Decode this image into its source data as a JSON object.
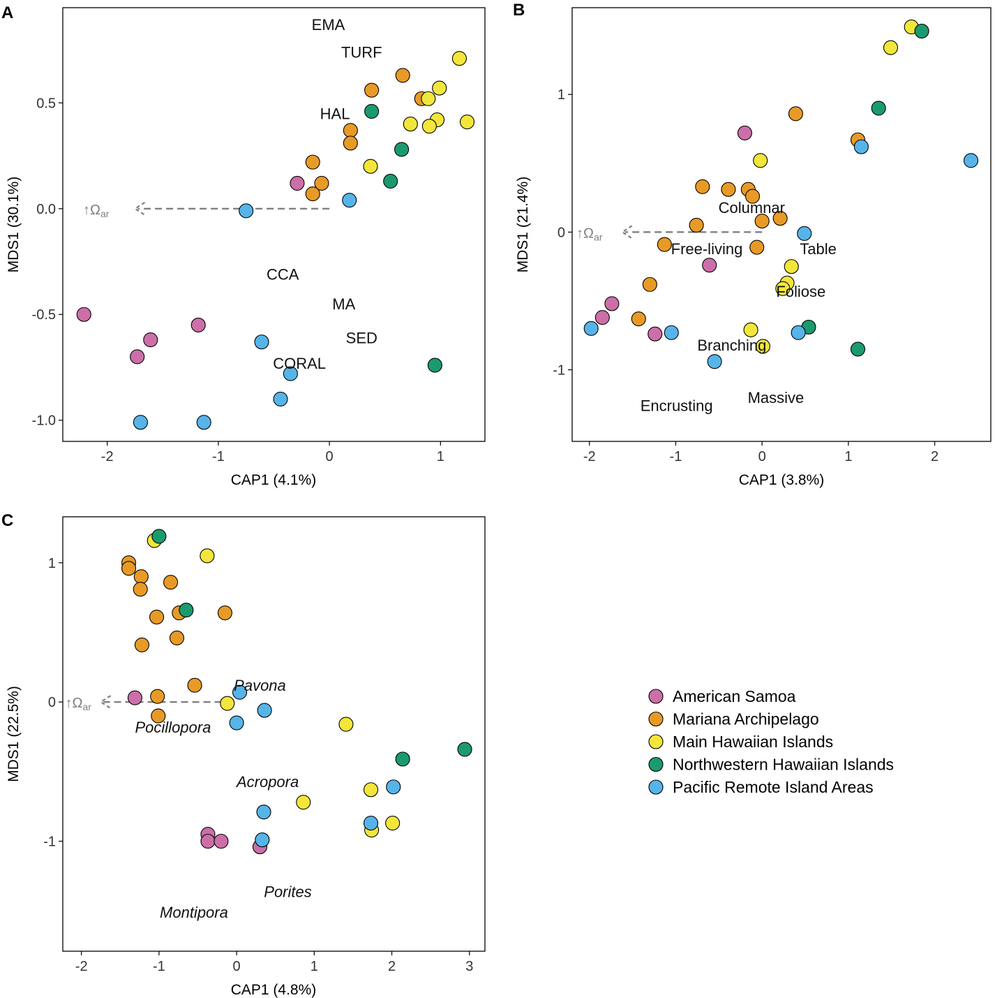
{
  "colors": {
    "american_samoa": "#cc6fa8",
    "mariana": "#e89a26",
    "main_hawaiian": "#f2e63a",
    "nw_hawaiian": "#1b9a6e",
    "pria": "#56b4e9",
    "axis": "#000000",
    "arrow": "#808080"
  },
  "legend": {
    "entries": [
      {
        "key": "american_samoa",
        "label": "American Samoa"
      },
      {
        "key": "mariana",
        "label": "Mariana Archipelago"
      },
      {
        "key": "main_hawaiian",
        "label": "Main Hawaiian Islands"
      },
      {
        "key": "nw_hawaiian",
        "label": "Northwestern Hawaiian Islands"
      },
      {
        "key": "pria",
        "label": "Pacific Remote Island Areas"
      }
    ]
  },
  "chart_data": [
    {
      "panel": "A",
      "type": "scatter",
      "xlabel": "CAP1 (4.1%)",
      "ylabel": "MDS1 (30.1%)",
      "xlim": [
        -2.4,
        1.4
      ],
      "ylim": [
        -1.1,
        0.95
      ],
      "xticks": [
        -2,
        -1,
        0,
        1
      ],
      "xtick_labels": [
        "-2",
        "-1",
        "0",
        "1"
      ],
      "yticks": [
        0.5,
        0.0,
        -0.5,
        -1.0
      ],
      "ytick_labels": [
        "0.5",
        "0.0",
        "-0.5",
        "-1.0"
      ],
      "arrow": {
        "y": 0,
        "from_x": 0,
        "to_x": -1.75,
        "label_x": -2.1,
        "label": "↑Ω",
        "label_sub": "ar"
      },
      "labels": [
        {
          "text": "EMA",
          "x": -0.01,
          "y": 0.87,
          "italic": false
        },
        {
          "text": "TURF",
          "x": 0.29,
          "y": 0.74,
          "italic": false
        },
        {
          "text": "HAL",
          "x": 0.05,
          "y": 0.45,
          "italic": false
        },
        {
          "text": "CCA",
          "x": -0.42,
          "y": -0.31,
          "italic": false
        },
        {
          "text": "MA",
          "x": 0.13,
          "y": -0.45,
          "italic": false
        },
        {
          "text": "SED",
          "x": 0.29,
          "y": -0.61,
          "italic": false
        },
        {
          "text": "CORAL",
          "x": -0.27,
          "y": -0.73,
          "italic": false
        }
      ],
      "series": [
        {
          "key": "american_samoa",
          "points": [
            [
              -2.21,
              -0.5
            ],
            [
              -1.61,
              -0.62
            ],
            [
              -1.73,
              -0.7
            ],
            [
              -1.18,
              -0.55
            ],
            [
              -0.29,
              0.12
            ]
          ]
        },
        {
          "key": "mariana",
          "points": [
            [
              0.66,
              0.63
            ],
            [
              0.38,
              0.56
            ],
            [
              0.83,
              0.52
            ],
            [
              0.19,
              0.37
            ],
            [
              0.19,
              0.31
            ],
            [
              -0.15,
              0.22
            ],
            [
              -0.07,
              0.12
            ],
            [
              -0.15,
              0.07
            ]
          ]
        },
        {
          "key": "main_hawaiian",
          "points": [
            [
              1.17,
              0.71
            ],
            [
              0.99,
              0.57
            ],
            [
              0.89,
              0.52
            ],
            [
              0.97,
              0.42
            ],
            [
              1.24,
              0.41
            ],
            [
              0.73,
              0.4
            ],
            [
              0.9,
              0.39
            ],
            [
              0.37,
              0.2
            ]
          ]
        },
        {
          "key": "nw_hawaiian",
          "points": [
            [
              0.38,
              0.46
            ],
            [
              0.65,
              0.28
            ],
            [
              0.55,
              0.13
            ],
            [
              0.95,
              -0.74
            ]
          ]
        },
        {
          "key": "pria",
          "points": [
            [
              -0.75,
              -0.01
            ],
            [
              0.18,
              0.04
            ],
            [
              -0.61,
              -0.63
            ],
            [
              -0.35,
              -0.78
            ],
            [
              -0.44,
              -0.9
            ],
            [
              -1.7,
              -1.01
            ],
            [
              -1.13,
              -1.01
            ]
          ]
        }
      ]
    },
    {
      "panel": "B",
      "type": "scatter",
      "xlabel": "CAP1 (3.8%)",
      "ylabel": "MDS1 (21.4%)",
      "xlim": [
        -2.2,
        2.65
      ],
      "ylim": [
        -1.52,
        1.63
      ],
      "xticks": [
        -2,
        -1,
        0,
        1,
        2
      ],
      "xtick_labels": [
        "-2",
        "-1",
        "0",
        "1",
        "2"
      ],
      "yticks": [
        1,
        0,
        -1
      ],
      "ytick_labels": [
        "1",
        "0",
        "-1"
      ],
      "arrow": {
        "y": 0,
        "from_x": 0,
        "to_x": -1.62,
        "label_x": -2.0,
        "label": "↑Ω",
        "label_sub": "ar"
      },
      "labels": [
        {
          "text": "Columnar",
          "x": -0.12,
          "y": 0.18,
          "italic": false
        },
        {
          "text": "Free-living",
          "x": -0.64,
          "y": -0.12,
          "italic": false
        },
        {
          "text": "Table",
          "x": 0.65,
          "y": -0.12,
          "italic": false
        },
        {
          "text": "Foliose",
          "x": 0.45,
          "y": -0.43,
          "italic": false
        },
        {
          "text": "Branching",
          "x": -0.35,
          "y": -0.82,
          "italic": false
        },
        {
          "text": "Encrusting",
          "x": -0.99,
          "y": -1.26,
          "italic": false
        },
        {
          "text": "Massive",
          "x": 0.16,
          "y": -1.2,
          "italic": false
        }
      ],
      "series": [
        {
          "key": "american_samoa",
          "points": [
            [
              -0.2,
              0.72
            ],
            [
              -0.61,
              -0.24
            ],
            [
              -1.74,
              -0.52
            ],
            [
              -1.85,
              -0.62
            ],
            [
              -1.24,
              -0.74
            ]
          ]
        },
        {
          "key": "mariana",
          "points": [
            [
              0.39,
              0.86
            ],
            [
              1.11,
              0.67
            ],
            [
              -0.69,
              0.33
            ],
            [
              -0.39,
              0.31
            ],
            [
              -0.16,
              0.31
            ],
            [
              -0.11,
              0.26
            ],
            [
              -0.76,
              0.05
            ],
            [
              0.0,
              0.08
            ],
            [
              0.21,
              0.1
            ],
            [
              -1.13,
              -0.09
            ],
            [
              -0.06,
              -0.11
            ],
            [
              -1.3,
              -0.38
            ],
            [
              -1.43,
              -0.63
            ]
          ]
        },
        {
          "key": "main_hawaiian",
          "points": [
            [
              1.73,
              1.49
            ],
            [
              1.49,
              1.34
            ],
            [
              -0.02,
              0.52
            ],
            [
              0.34,
              -0.25
            ],
            [
              0.29,
              -0.37
            ],
            [
              0.24,
              -0.41
            ],
            [
              -0.13,
              -0.71
            ],
            [
              0.01,
              -0.83
            ]
          ]
        },
        {
          "key": "nw_hawaiian",
          "points": [
            [
              1.85,
              1.46
            ],
            [
              1.35,
              0.9
            ],
            [
              0.54,
              -0.69
            ],
            [
              1.11,
              -0.85
            ]
          ]
        },
        {
          "key": "pria",
          "points": [
            [
              2.42,
              0.52
            ],
            [
              1.15,
              0.62
            ],
            [
              0.49,
              -0.01
            ],
            [
              -1.98,
              -0.7
            ],
            [
              -1.05,
              -0.73
            ],
            [
              0.42,
              -0.73
            ],
            [
              -0.55,
              -0.94
            ]
          ]
        }
      ]
    },
    {
      "panel": "C",
      "type": "scatter",
      "xlabel": "CAP1 (4.8%)",
      "ylabel": "MDS1 (22.5%)",
      "xlim": [
        -2.24,
        3.2
      ],
      "ylim": [
        -1.79,
        1.33
      ],
      "xticks": [
        -2,
        -1,
        0,
        1,
        2,
        3
      ],
      "xtick_labels": [
        "-2",
        "-1",
        "0",
        "1",
        "2",
        "3"
      ],
      "yticks": [
        1,
        0,
        -1
      ],
      "ytick_labels": [
        "1",
        "0",
        "-1"
      ],
      "arrow": {
        "y": 0,
        "from_x": -0.05,
        "to_x": -1.75,
        "label_x": -2.04,
        "label": "↑Ω",
        "label_sub": "ar"
      },
      "labels": [
        {
          "text": "Pavona",
          "x": 0.3,
          "y": 0.12,
          "italic": true
        },
        {
          "text": "Pocillopora",
          "x": -0.82,
          "y": -0.18,
          "italic": true
        },
        {
          "text": "Acropora",
          "x": 0.4,
          "y": -0.57,
          "italic": true
        },
        {
          "text": "Porites",
          "x": 0.66,
          "y": -1.36,
          "italic": true
        },
        {
          "text": "Montipora",
          "x": -0.55,
          "y": -1.51,
          "italic": true
        }
      ],
      "series": [
        {
          "key": "american_samoa",
          "points": [
            [
              -1.31,
              0.03
            ],
            [
              -0.37,
              -0.95
            ],
            [
              -0.37,
              -1.0
            ],
            [
              -0.2,
              -1.0
            ],
            [
              0.3,
              -1.04
            ]
          ]
        },
        {
          "key": "mariana",
          "points": [
            [
              -1.39,
              1.0
            ],
            [
              -1.39,
              0.96
            ],
            [
              -1.23,
              0.9
            ],
            [
              -1.24,
              0.81
            ],
            [
              -0.85,
              0.86
            ],
            [
              -1.03,
              0.61
            ],
            [
              -0.74,
              0.64
            ],
            [
              -0.15,
              0.64
            ],
            [
              -0.77,
              0.46
            ],
            [
              -1.22,
              0.41
            ],
            [
              -0.54,
              0.12
            ],
            [
              -1.02,
              0.04
            ],
            [
              -1.01,
              -0.1
            ]
          ]
        },
        {
          "key": "main_hawaiian",
          "points": [
            [
              -1.06,
              1.16
            ],
            [
              -0.38,
              1.05
            ],
            [
              -0.12,
              -0.01
            ],
            [
              1.41,
              -0.16
            ],
            [
              0.86,
              -0.72
            ],
            [
              1.73,
              -0.63
            ],
            [
              2.01,
              -0.87
            ],
            [
              1.74,
              -0.92
            ]
          ]
        },
        {
          "key": "nw_hawaiian",
          "points": [
            [
              -1.0,
              1.19
            ],
            [
              -0.65,
              0.66
            ],
            [
              2.14,
              -0.41
            ],
            [
              2.94,
              -0.34
            ]
          ]
        },
        {
          "key": "pria",
          "points": [
            [
              0.04,
              0.07
            ],
            [
              0.36,
              -0.06
            ],
            [
              0.0,
              -0.15
            ],
            [
              2.02,
              -0.61
            ],
            [
              0.35,
              -0.79
            ],
            [
              1.73,
              -0.87
            ],
            [
              0.33,
              -0.99
            ]
          ]
        }
      ]
    }
  ],
  "panel_letters": {
    "A": "A",
    "B": "B",
    "C": "C"
  }
}
